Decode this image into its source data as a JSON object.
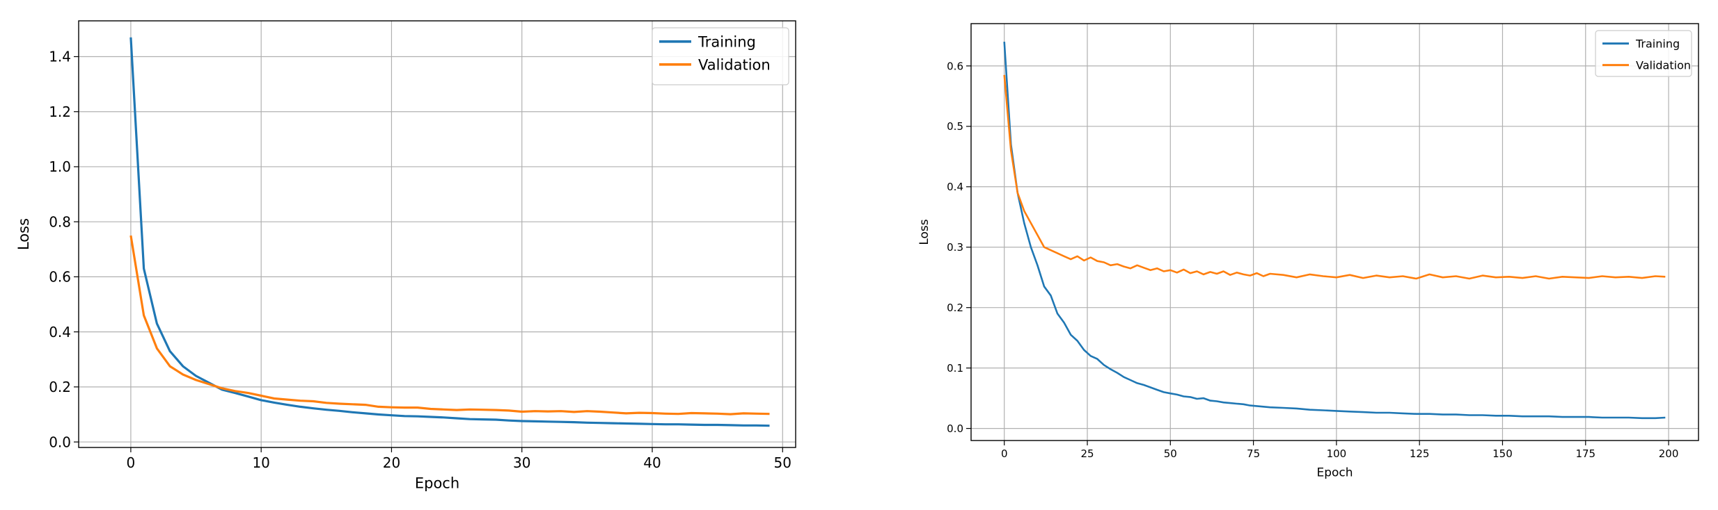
{
  "chart_data": [
    {
      "type": "line",
      "xlabel": "Epoch",
      "ylabel": "Loss",
      "xlim": [
        -4,
        51
      ],
      "ylim": [
        -0.02,
        1.53
      ],
      "xticks": [
        0,
        10,
        20,
        30,
        40,
        50
      ],
      "xtick_labels": [
        "0",
        "10",
        "20",
        "30",
        "40",
        "50"
      ],
      "yticks": [
        0.0,
        0.2,
        0.4,
        0.6,
        0.8,
        1.0,
        1.2,
        1.4
      ],
      "ytick_labels": [
        "0.0",
        "0.2",
        "0.4",
        "0.6",
        "0.8",
        "1.0",
        "1.2",
        "1.4"
      ],
      "grid": true,
      "legend": "top-right",
      "series": [
        {
          "name": "Training",
          "color": "#1f77b4",
          "x": [
            0,
            1,
            2,
            3,
            4,
            5,
            6,
            7,
            8,
            9,
            10,
            11,
            12,
            13,
            14,
            15,
            16,
            17,
            18,
            19,
            20,
            21,
            22,
            23,
            24,
            25,
            26,
            27,
            28,
            29,
            30,
            31,
            32,
            33,
            34,
            35,
            36,
            37,
            38,
            39,
            40,
            41,
            42,
            43,
            44,
            45,
            46,
            47,
            48,
            49
          ],
          "y": [
            1.47,
            0.63,
            0.43,
            0.33,
            0.275,
            0.24,
            0.215,
            0.19,
            0.178,
            0.165,
            0.152,
            0.143,
            0.135,
            0.128,
            0.122,
            0.117,
            0.113,
            0.108,
            0.104,
            0.1,
            0.097,
            0.094,
            0.093,
            0.091,
            0.089,
            0.086,
            0.083,
            0.082,
            0.081,
            0.078,
            0.076,
            0.075,
            0.074,
            0.073,
            0.072,
            0.07,
            0.069,
            0.068,
            0.067,
            0.066,
            0.065,
            0.064,
            0.064,
            0.063,
            0.062,
            0.062,
            0.061,
            0.06,
            0.06,
            0.059
          ]
        },
        {
          "name": "Validation",
          "color": "#ff7f0e",
          "x": [
            0,
            1,
            2,
            3,
            4,
            5,
            6,
            7,
            8,
            9,
            10,
            11,
            12,
            13,
            14,
            15,
            16,
            17,
            18,
            19,
            20,
            21,
            22,
            23,
            24,
            25,
            26,
            27,
            28,
            29,
            30,
            31,
            32,
            33,
            34,
            35,
            36,
            37,
            38,
            39,
            40,
            41,
            42,
            43,
            44,
            45,
            46,
            47,
            48,
            49
          ],
          "y": [
            0.75,
            0.46,
            0.34,
            0.275,
            0.245,
            0.225,
            0.21,
            0.195,
            0.185,
            0.178,
            0.168,
            0.158,
            0.154,
            0.15,
            0.148,
            0.142,
            0.139,
            0.137,
            0.135,
            0.128,
            0.126,
            0.125,
            0.125,
            0.12,
            0.118,
            0.116,
            0.118,
            0.117,
            0.116,
            0.114,
            0.11,
            0.112,
            0.111,
            0.112,
            0.109,
            0.112,
            0.11,
            0.107,
            0.104,
            0.106,
            0.105,
            0.103,
            0.102,
            0.105,
            0.104,
            0.103,
            0.101,
            0.104,
            0.103,
            0.102
          ]
        }
      ]
    },
    {
      "type": "line",
      "xlabel": "Epoch",
      "ylabel": "Loss",
      "xlim": [
        -10,
        209
      ],
      "ylim": [
        -0.02,
        0.67
      ],
      "xticks": [
        0,
        25,
        50,
        75,
        100,
        125,
        150,
        175,
        200
      ],
      "xtick_labels": [
        "0",
        "25",
        "50",
        "75",
        "100",
        "125",
        "150",
        "175",
        "200"
      ],
      "yticks": [
        0.0,
        0.1,
        0.2,
        0.3,
        0.4,
        0.5,
        0.6
      ],
      "ytick_labels": [
        "0.0",
        "0.1",
        "0.2",
        "0.3",
        "0.4",
        "0.5",
        "0.6"
      ],
      "grid": true,
      "legend": "top-right",
      "series": [
        {
          "name": "Training",
          "color": "#1f77b4",
          "x": [
            0,
            2,
            4,
            6,
            8,
            10,
            12,
            14,
            16,
            18,
            20,
            22,
            24,
            26,
            28,
            30,
            32,
            34,
            36,
            38,
            40,
            42,
            44,
            46,
            48,
            50,
            52,
            54,
            56,
            58,
            60,
            62,
            64,
            66,
            68,
            70,
            72,
            74,
            76,
            78,
            80,
            84,
            88,
            92,
            96,
            100,
            104,
            108,
            112,
            116,
            120,
            124,
            128,
            132,
            136,
            140,
            144,
            148,
            152,
            156,
            160,
            164,
            168,
            172,
            176,
            180,
            184,
            188,
            192,
            196,
            199
          ],
          "y": [
            0.64,
            0.47,
            0.39,
            0.34,
            0.3,
            0.27,
            0.235,
            0.22,
            0.19,
            0.175,
            0.155,
            0.145,
            0.13,
            0.12,
            0.115,
            0.105,
            0.098,
            0.092,
            0.085,
            0.08,
            0.075,
            0.072,
            0.068,
            0.064,
            0.06,
            0.058,
            0.056,
            0.053,
            0.052,
            0.049,
            0.05,
            0.046,
            0.045,
            0.043,
            0.042,
            0.041,
            0.04,
            0.038,
            0.037,
            0.036,
            0.035,
            0.034,
            0.033,
            0.031,
            0.03,
            0.029,
            0.028,
            0.027,
            0.026,
            0.026,
            0.025,
            0.024,
            0.024,
            0.023,
            0.023,
            0.022,
            0.022,
            0.021,
            0.021,
            0.02,
            0.02,
            0.02,
            0.019,
            0.019,
            0.019,
            0.018,
            0.018,
            0.018,
            0.017,
            0.017,
            0.018
          ]
        },
        {
          "name": "Validation",
          "color": "#ff7f0e",
          "x": [
            0,
            2,
            4,
            6,
            8,
            10,
            12,
            14,
            16,
            18,
            20,
            22,
            24,
            26,
            28,
            30,
            32,
            34,
            36,
            38,
            40,
            42,
            44,
            46,
            48,
            50,
            52,
            54,
            56,
            58,
            60,
            62,
            64,
            66,
            68,
            70,
            72,
            74,
            76,
            78,
            80,
            84,
            88,
            92,
            96,
            100,
            104,
            108,
            112,
            116,
            120,
            124,
            128,
            132,
            136,
            140,
            144,
            148,
            152,
            156,
            160,
            164,
            168,
            172,
            176,
            180,
            184,
            188,
            192,
            196,
            199
          ],
          "y": [
            0.585,
            0.46,
            0.39,
            0.36,
            0.34,
            0.32,
            0.3,
            0.295,
            0.29,
            0.285,
            0.28,
            0.285,
            0.278,
            0.283,
            0.277,
            0.275,
            0.27,
            0.272,
            0.268,
            0.265,
            0.27,
            0.266,
            0.262,
            0.265,
            0.26,
            0.262,
            0.258,
            0.263,
            0.257,
            0.26,
            0.255,
            0.259,
            0.256,
            0.26,
            0.254,
            0.258,
            0.255,
            0.253,
            0.257,
            0.252,
            0.256,
            0.254,
            0.25,
            0.255,
            0.252,
            0.25,
            0.254,
            0.249,
            0.253,
            0.25,
            0.252,
            0.248,
            0.255,
            0.25,
            0.252,
            0.248,
            0.253,
            0.25,
            0.251,
            0.249,
            0.252,
            0.248,
            0.251,
            0.25,
            0.249,
            0.252,
            0.25,
            0.251,
            0.249,
            0.252,
            0.251
          ]
        }
      ]
    }
  ]
}
